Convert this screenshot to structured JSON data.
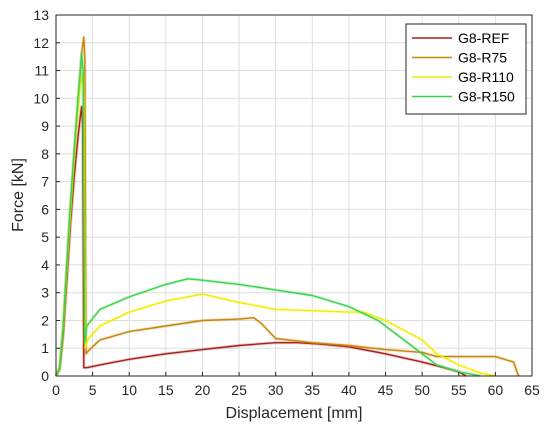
{
  "chart_data": {
    "type": "line",
    "title": "",
    "xlabel": "Displacement [mm]",
    "ylabel": "Force [kN]",
    "xlim": [
      0,
      65
    ],
    "ylim": [
      0,
      13
    ],
    "x_ticks": [
      0,
      5,
      10,
      15,
      20,
      25,
      30,
      35,
      40,
      45,
      50,
      55,
      60,
      65
    ],
    "y_ticks": [
      0,
      1,
      2,
      3,
      4,
      5,
      6,
      7,
      8,
      9,
      10,
      11,
      12,
      13
    ],
    "grid": true,
    "legend_position": "top-right",
    "series": [
      {
        "name": "G8-REF",
        "color": "#a8201a",
        "x": [
          0,
          0.5,
          1,
          1.5,
          2,
          2.5,
          3,
          3.3,
          3.5,
          3.65,
          3.8,
          4.2,
          6,
          10,
          15,
          20,
          25,
          30,
          33,
          36,
          40,
          45,
          50,
          53,
          55,
          56
        ],
        "y": [
          0,
          0.25,
          1.5,
          3.5,
          5.5,
          7.2,
          8.6,
          9.3,
          9.7,
          9.0,
          0.3,
          0.3,
          0.4,
          0.6,
          0.8,
          0.95,
          1.1,
          1.2,
          1.2,
          1.15,
          1.05,
          0.8,
          0.5,
          0.3,
          0.15,
          0
        ]
      },
      {
        "name": "G8-R75",
        "color": "#c8860a",
        "x": [
          0,
          0.5,
          1,
          1.5,
          2,
          2.5,
          3,
          3.5,
          3.8,
          3.95,
          4.1,
          4.4,
          6,
          10,
          15,
          20,
          25,
          27,
          28,
          30,
          35,
          40,
          45,
          50,
          52,
          55,
          60,
          62.5,
          63,
          63.2
        ],
        "y": [
          0,
          0.3,
          1.8,
          4,
          6,
          8,
          9.8,
          11.6,
          12.2,
          11.4,
          0.8,
          0.9,
          1.3,
          1.6,
          1.8,
          2.0,
          2.05,
          2.1,
          1.9,
          1.35,
          1.2,
          1.1,
          0.95,
          0.85,
          0.7,
          0.7,
          0.7,
          0.5,
          0.1,
          0
        ]
      },
      {
        "name": "G8-R110",
        "color": "#f2ee00",
        "x": [
          0,
          0.5,
          1,
          1.5,
          2,
          2.5,
          3,
          3.3,
          3.6,
          3.8,
          4.0,
          4.3,
          6,
          10,
          15,
          20,
          25,
          30,
          35,
          40,
          42,
          45,
          50,
          52,
          55,
          58,
          60
        ],
        "y": [
          0,
          0.3,
          1.8,
          4,
          6,
          8,
          9.6,
          10.4,
          10.9,
          10.0,
          1.0,
          1.3,
          1.8,
          2.3,
          2.7,
          2.95,
          2.65,
          2.4,
          2.35,
          2.3,
          2.3,
          2.0,
          1.3,
          0.8,
          0.4,
          0.1,
          0
        ]
      },
      {
        "name": "G8-R150",
        "color": "#3ad44a",
        "x": [
          0,
          0.5,
          1,
          1.5,
          2,
          2.5,
          3,
          3.3,
          3.5,
          3.7,
          3.9,
          4.2,
          6,
          10,
          15,
          18,
          20,
          25,
          30,
          35,
          40,
          44,
          47,
          50,
          52,
          55,
          57,
          58
        ],
        "y": [
          0,
          0.3,
          1.8,
          4.2,
          6.3,
          8.2,
          10,
          10.9,
          11.6,
          11.0,
          1.2,
          1.8,
          2.4,
          2.85,
          3.3,
          3.5,
          3.45,
          3.3,
          3.1,
          2.9,
          2.5,
          2.0,
          1.4,
          0.8,
          0.4,
          0.15,
          0.05,
          0
        ]
      }
    ]
  }
}
